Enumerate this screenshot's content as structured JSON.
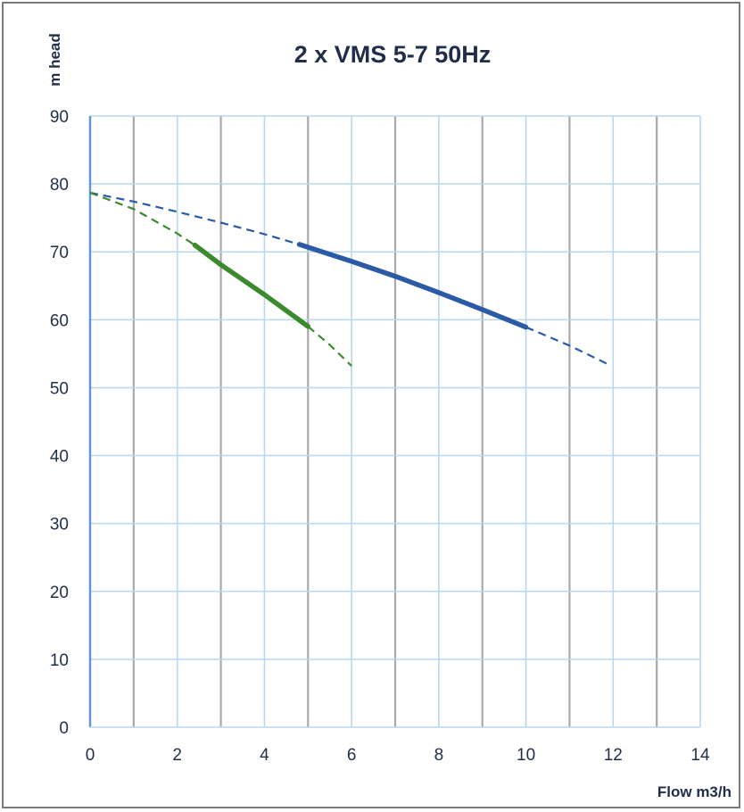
{
  "chart_data": {
    "type": "line",
    "title": "2 x VMS  5-7 50Hz",
    "xlabel": "Flow m3/h",
    "ylabel": "m head",
    "xlim": [
      0,
      14
    ],
    "ylim": [
      0,
      90
    ],
    "x_ticks": [
      "0",
      "2",
      "4",
      "6",
      "8",
      "10",
      "12",
      "14"
    ],
    "y_ticks": [
      "0",
      "10",
      "20",
      "30",
      "40",
      "50",
      "60",
      "70",
      "80",
      "90"
    ],
    "grid": true,
    "series": [
      {
        "color": "#2b5aa6",
        "style": "dashed",
        "points": [
          [
            0,
            78.7
          ],
          [
            1,
            77.4
          ],
          [
            2,
            75.9
          ],
          [
            3,
            74.3
          ],
          [
            4,
            72.6
          ],
          [
            4.8,
            71.1
          ]
        ]
      },
      {
        "color": "#2b5aa6",
        "style": "solid",
        "points": [
          [
            4.8,
            71.1
          ],
          [
            6,
            68.6
          ],
          [
            7,
            66.4
          ],
          [
            8,
            64.0
          ],
          [
            9,
            61.5
          ],
          [
            10,
            58.9
          ]
        ]
      },
      {
        "color": "#2b5aa6",
        "style": "dashed",
        "points": [
          [
            10,
            58.9
          ],
          [
            11,
            56.2
          ],
          [
            11.9,
            53.4
          ]
        ]
      },
      {
        "color": "#3c8a2e",
        "style": "dashed",
        "points": [
          [
            0,
            78.7
          ],
          [
            1,
            76.3
          ],
          [
            2,
            72.7
          ],
          [
            2.4,
            71.0
          ]
        ]
      },
      {
        "color": "#3c8a2e",
        "style": "solid",
        "points": [
          [
            2.4,
            71.0
          ],
          [
            3,
            68.1
          ],
          [
            4,
            63.7
          ],
          [
            5,
            59.0
          ]
        ]
      },
      {
        "color": "#3c8a2e",
        "style": "dashed",
        "points": [
          [
            5,
            59.0
          ],
          [
            5.5,
            56.3
          ],
          [
            6,
            53.2
          ]
        ]
      }
    ]
  }
}
